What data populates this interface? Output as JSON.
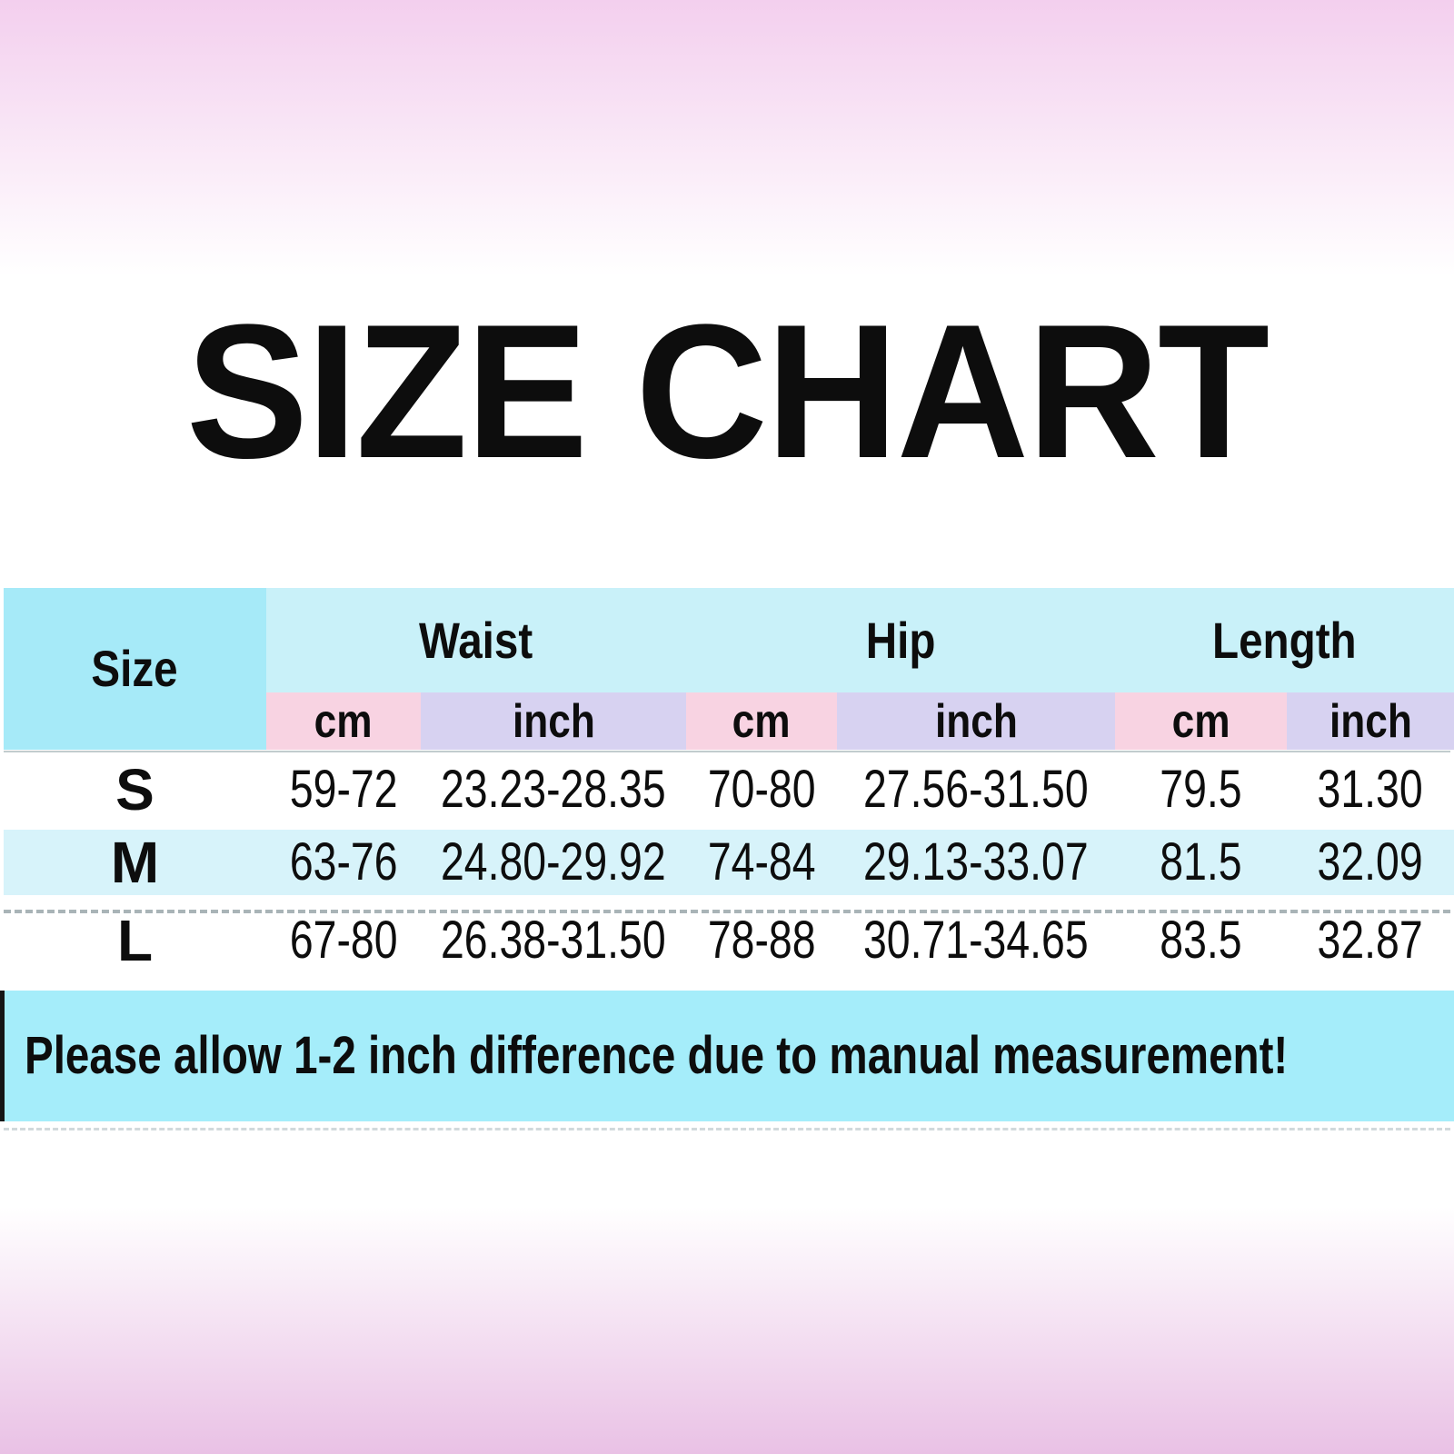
{
  "page": {
    "title": "SIZE CHART",
    "note": "Please allow 1-2 inch difference due to manual measurement!"
  },
  "table": {
    "size_header": "Size",
    "groups": [
      {
        "label": "Waist"
      },
      {
        "label": "Hip"
      },
      {
        "label": "Length"
      }
    ],
    "unit_headers": [
      "cm",
      "inch",
      "cm",
      "inch",
      "cm",
      "inch"
    ],
    "rows": [
      {
        "size": "S",
        "cells": [
          "59-72",
          "23.23-28.35",
          "70-80",
          "27.56-31.50",
          "79.5",
          "31.30"
        ]
      },
      {
        "size": "M",
        "cells": [
          "63-76",
          "24.80-29.92",
          "74-84",
          "29.13-33.07",
          "81.5",
          "32.09"
        ]
      },
      {
        "size": "L",
        "cells": [
          "67-80",
          "26.38-31.50",
          "78-88",
          "30.71-34.65",
          "83.5",
          "32.87"
        ]
      }
    ]
  },
  "colors": {
    "gradient-top": "#f3cfee",
    "gradient-bottom": "#e9c1e5",
    "header-cyan": "#a6eaf8",
    "group-cyan": "#c9f1f9",
    "cm-pink": "#f8d3e2",
    "inch-lavender": "#d7d2f1",
    "row-alt-cyan": "#d7f3fa",
    "note-cyan": "#a5edfa",
    "text": "#0d0d0d"
  }
}
